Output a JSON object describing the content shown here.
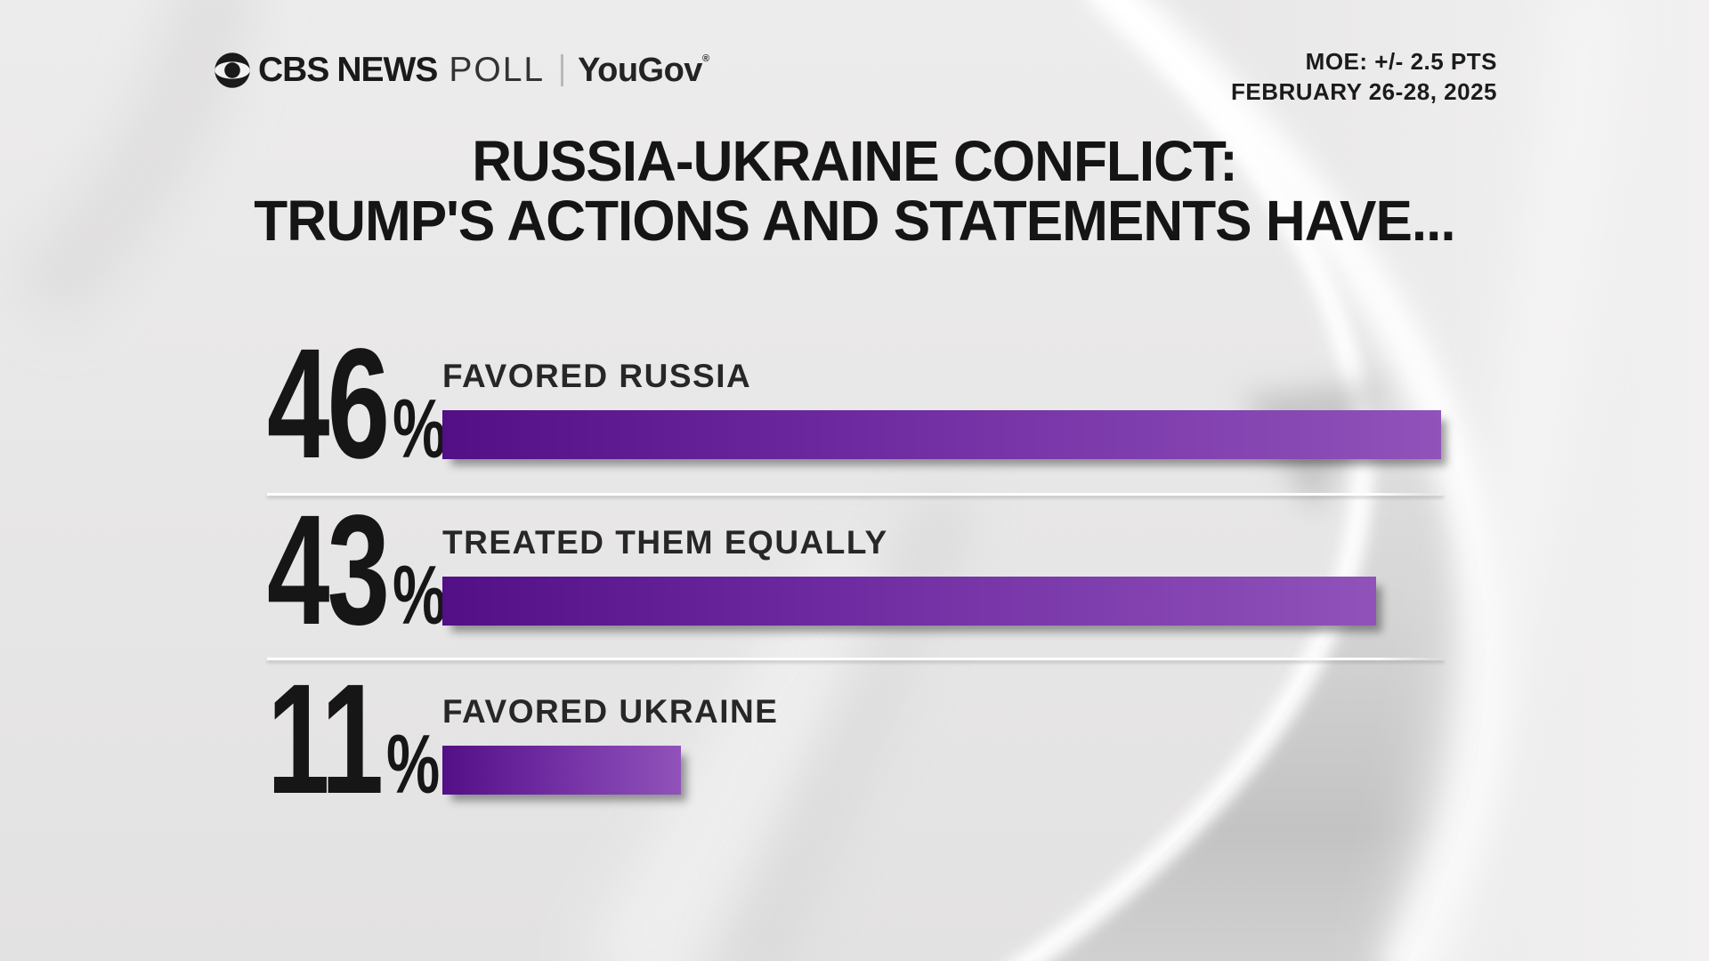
{
  "header": {
    "brand": {
      "cbs": "CBS",
      "news": "NEWS",
      "poll": "POLL",
      "partner": "YouGov",
      "reg": "®"
    },
    "moe_line1": "MOE: +/- 2.5 PTS",
    "moe_line2": "FEBRUARY 26-28, 2025"
  },
  "title": {
    "line1": "RUSSIA-UKRAINE CONFLICT:",
    "line2": "TRUMP'S ACTIONS AND STATEMENTS HAVE..."
  },
  "chart_data": {
    "type": "bar",
    "orientation": "horizontal",
    "title": "RUSSIA-UKRAINE CONFLICT: TRUMP'S ACTIONS AND STATEMENTS HAVE...",
    "source": "CBS NEWS POLL | YouGov",
    "moe": "MOE: +/- 2.5 PTS",
    "dates": "FEBRUARY 26-28, 2025",
    "categories": [
      "FAVORED RUSSIA",
      "TREATED THEM EQUALLY",
      "FAVORED UKRAINE"
    ],
    "values": [
      46,
      43,
      11
    ],
    "unit": "%",
    "xlim": [
      0,
      50
    ],
    "grid": false,
    "legend": false,
    "bar_gradient": [
      "#530f86",
      "#9152ba"
    ],
    "value_label_color": "#171616"
  },
  "rows": [
    {
      "value": "46",
      "unit": "%",
      "label": "FAVORED RUSSIA"
    },
    {
      "value": "43",
      "unit": "%",
      "label": "TREATED THEM EQUALLY"
    },
    {
      "value": "11",
      "unit": "%",
      "label": "FAVORED UKRAINE"
    }
  ],
  "colors": {
    "background": "#e7e6e6",
    "text": "#171616",
    "bar_dark": "#530f86",
    "bar_light": "#9152ba",
    "separator": "#ffffff"
  }
}
